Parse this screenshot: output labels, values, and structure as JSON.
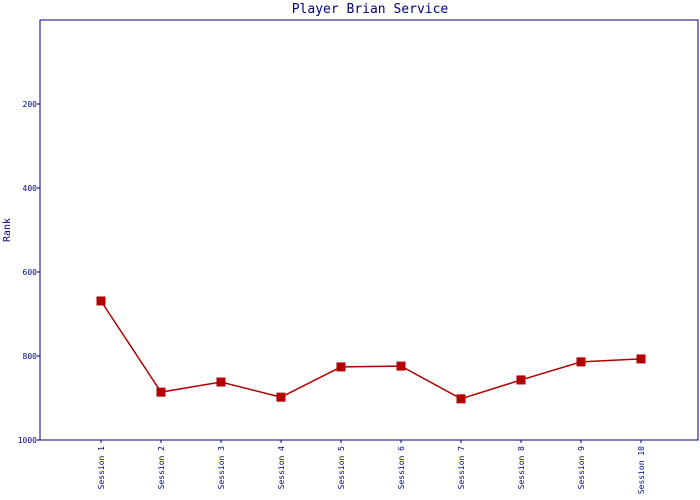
{
  "chart_data": {
    "type": "line",
    "title": "Player Brian Service",
    "y_label": "Rank",
    "categories": [
      "Session 1",
      "Session 2",
      "Session 3",
      "Session 4",
      "Session 5",
      "Session 6",
      "Session 7",
      "Session 8",
      "Session 9",
      "Session 10"
    ],
    "series": [
      {
        "name": "Rank",
        "color": "#b20000",
        "values": [
          669,
          886,
          862,
          898,
          826,
          824,
          902,
          857,
          814,
          807
        ]
      }
    ],
    "ylim": [
      1000,
      0
    ],
    "yticks": [
      200,
      400,
      600,
      800,
      1000
    ],
    "grid": false
  }
}
